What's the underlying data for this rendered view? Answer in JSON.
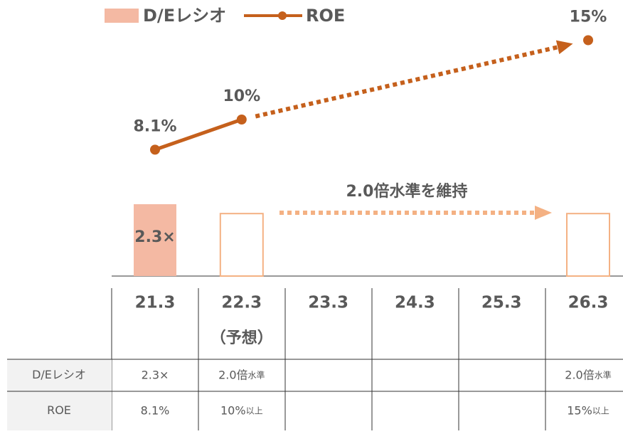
{
  "chart_data": {
    "type": "bar-line",
    "categories": [
      "21.3",
      "22.3",
      "23.3",
      "24.3",
      "25.3",
      "26.3"
    ],
    "category_note": "（予想）",
    "series": [
      {
        "name": "D/Eレシオ",
        "type": "bar",
        "color": "#f4b9a3",
        "outline": "#f4b183",
        "values": [
          2.3,
          2.0,
          null,
          null,
          null,
          2.0
        ],
        "value_labels": [
          "2.3×",
          null,
          null,
          null,
          null,
          null
        ]
      },
      {
        "name": "ROE",
        "type": "line",
        "color": "#c5601c",
        "values": [
          8.1,
          10,
          null,
          null,
          null,
          15
        ],
        "value_labels": [
          "8.1%",
          "10%",
          null,
          null,
          null,
          "15%"
        ]
      }
    ],
    "annotation": "2.0倍水準を維持"
  },
  "table": {
    "rows": [
      {
        "label": "D/Eレシオ",
        "cells": [
          {
            "text": "2.3×"
          },
          {
            "text": "2.0倍",
            "small": "水準"
          },
          null,
          null,
          null,
          {
            "text": "2.0倍",
            "small": "水準"
          }
        ]
      },
      {
        "label": "ROE",
        "cells": [
          {
            "text": "8.1%"
          },
          {
            "text": "10%",
            "small": "以上"
          },
          null,
          null,
          null,
          {
            "text": "15%",
            "small": "以上"
          }
        ]
      }
    ]
  }
}
